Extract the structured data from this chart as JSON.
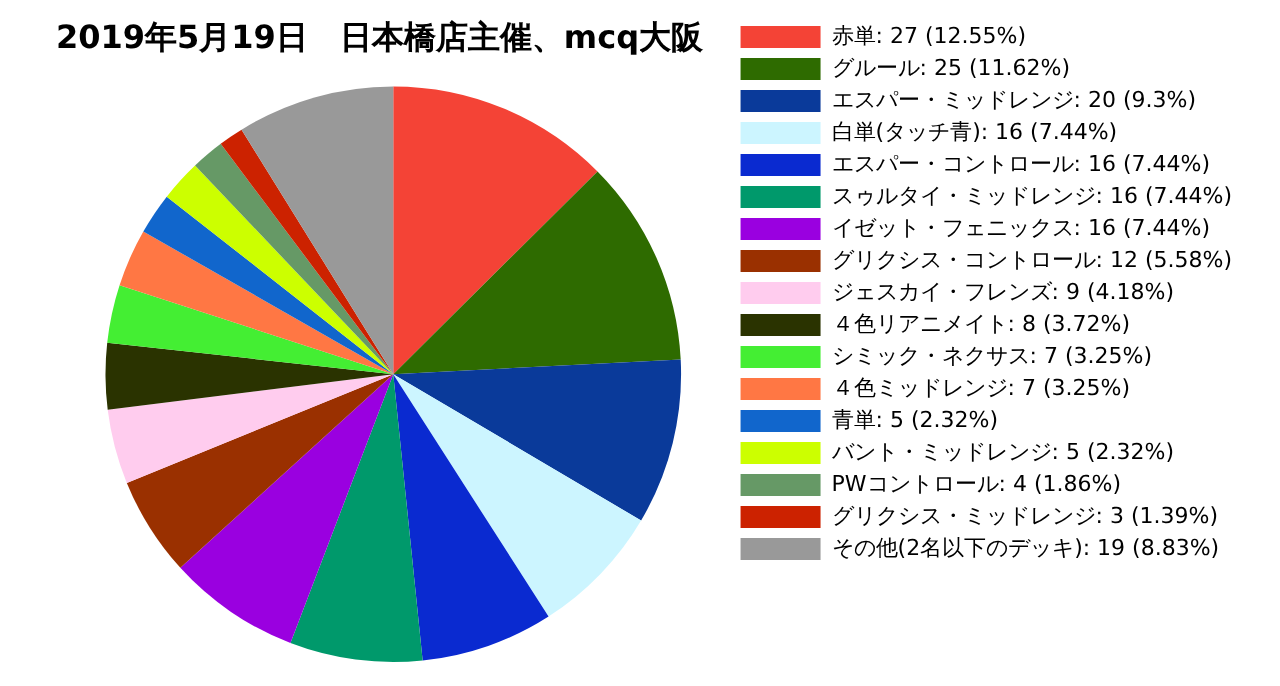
{
  "chart_data": {
    "type": "pie",
    "title": "2019年5月19日　日本橋店主催、mcq大阪",
    "categories": [
      "赤単: 27 (12.55%)",
      "グルール: 25 (11.62%)",
      "エスパー・ミッドレンジ: 20 (9.3%)",
      "白単(タッチ青): 16 (7.44%)",
      "エスパー・コントロール: 16 (7.44%)",
      "スゥルタイ・ミッドレンジ: 16 (7.44%)",
      "イゼット・フェニックス: 16 (7.44%)",
      "グリクシス・コントロール: 12 (5.58%)",
      "ジェスカイ・フレンズ: 9 (4.18%)",
      "４色リアニメイト: 8 (3.72%)",
      "シミック・ネクサス: 7 (3.25%)",
      "４色ミッドレンジ: 7 (3.25%)",
      "青単: 5 (2.32%)",
      "バント・ミッドレンジ: 5 (2.32%)",
      "PWコントロール: 4 (1.86%)",
      "グリクシス・ミッドレンジ: 3 (1.39%)",
      "その他(2名以下のデッキ): 19 (8.83%)"
    ],
    "values": [
      27,
      25,
      20,
      16,
      16,
      16,
      16,
      12,
      9,
      8,
      7,
      7,
      5,
      5,
      4,
      3,
      19
    ],
    "colors": [
      "#f44336",
      "#2e6b00",
      "#0a3a9a",
      "#ccf5ff",
      "#0a2ad0",
      "#00996b",
      "#9a00e0",
      "#9a3000",
      "#ffccee",
      "#2a3300",
      "#44ee33",
      "#ff7744",
      "#1166cc",
      "#ccff00",
      "#669966",
      "#cc2200",
      "#999999"
    ],
    "legend": "right"
  }
}
